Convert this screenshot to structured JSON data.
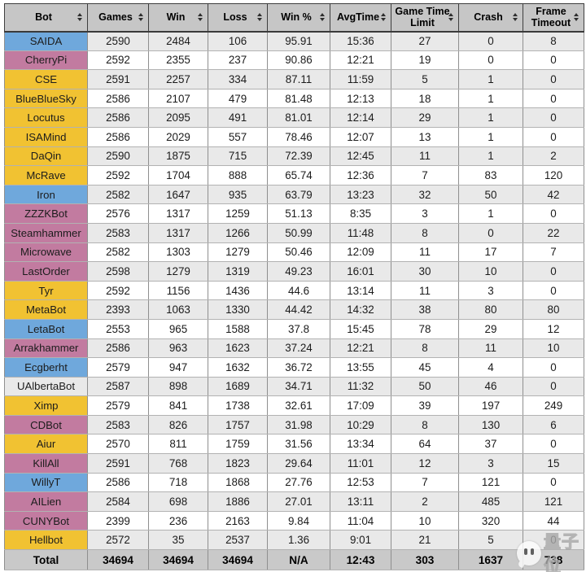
{
  "colors": {
    "blue": "#6fa8dc",
    "pink": "#c27ba0",
    "yellow": "#f1c232",
    "header_bg": "#c6c6c6",
    "stripe": "#e9e9e9",
    "total_bg": "#c9c9c9"
  },
  "table": {
    "columns": [
      {
        "key": "bot",
        "label": "Bot"
      },
      {
        "key": "games",
        "label": "Games"
      },
      {
        "key": "win",
        "label": "Win"
      },
      {
        "key": "loss",
        "label": "Loss"
      },
      {
        "key": "win_pct",
        "label": "Win %"
      },
      {
        "key": "avg_time",
        "label": "AvgTime"
      },
      {
        "key": "game_time_limit",
        "label": "Game Time Limit"
      },
      {
        "key": "crash",
        "label": "Crash"
      },
      {
        "key": "frame_timeout",
        "label": "Frame Timeout"
      }
    ],
    "rows": [
      {
        "bot": "SAIDA",
        "color": "blue",
        "cells": [
          "2590",
          "2484",
          "106",
          "95.91",
          "15:36",
          "27",
          "0",
          "8"
        ]
      },
      {
        "bot": "CherryPi",
        "color": "pink",
        "cells": [
          "2592",
          "2355",
          "237",
          "90.86",
          "12:21",
          "19",
          "0",
          "0"
        ]
      },
      {
        "bot": "CSE",
        "color": "yellow",
        "cells": [
          "2591",
          "2257",
          "334",
          "87.11",
          "11:59",
          "5",
          "1",
          "0"
        ]
      },
      {
        "bot": "BlueBlueSky",
        "color": "yellow",
        "cells": [
          "2586",
          "2107",
          "479",
          "81.48",
          "12:13",
          "18",
          "1",
          "0"
        ]
      },
      {
        "bot": "Locutus",
        "color": "yellow",
        "cells": [
          "2586",
          "2095",
          "491",
          "81.01",
          "12:14",
          "29",
          "1",
          "0"
        ]
      },
      {
        "bot": "ISAMind",
        "color": "yellow",
        "cells": [
          "2586",
          "2029",
          "557",
          "78.46",
          "12:07",
          "13",
          "1",
          "0"
        ]
      },
      {
        "bot": "DaQin",
        "color": "yellow",
        "cells": [
          "2590",
          "1875",
          "715",
          "72.39",
          "12:45",
          "11",
          "1",
          "2"
        ]
      },
      {
        "bot": "McRave",
        "color": "yellow",
        "cells": [
          "2592",
          "1704",
          "888",
          "65.74",
          "12:36",
          "7",
          "83",
          "120"
        ]
      },
      {
        "bot": "Iron",
        "color": "blue",
        "cells": [
          "2582",
          "1647",
          "935",
          "63.79",
          "13:23",
          "32",
          "50",
          "42"
        ]
      },
      {
        "bot": "ZZZKBot",
        "color": "pink",
        "cells": [
          "2576",
          "1317",
          "1259",
          "51.13",
          "8:35",
          "3",
          "1",
          "0"
        ]
      },
      {
        "bot": "Steamhammer",
        "color": "pink",
        "cells": [
          "2583",
          "1317",
          "1266",
          "50.99",
          "11:48",
          "8",
          "0",
          "22"
        ]
      },
      {
        "bot": "Microwave",
        "color": "pink",
        "cells": [
          "2582",
          "1303",
          "1279",
          "50.46",
          "12:09",
          "11",
          "17",
          "7"
        ]
      },
      {
        "bot": "LastOrder",
        "color": "pink",
        "cells": [
          "2598",
          "1279",
          "1319",
          "49.23",
          "16:01",
          "30",
          "10",
          "0"
        ]
      },
      {
        "bot": "Tyr",
        "color": "yellow",
        "cells": [
          "2592",
          "1156",
          "1436",
          "44.6",
          "13:14",
          "11",
          "3",
          "0"
        ]
      },
      {
        "bot": "MetaBot",
        "color": "yellow",
        "cells": [
          "2393",
          "1063",
          "1330",
          "44.42",
          "14:32",
          "38",
          "80",
          "80"
        ]
      },
      {
        "bot": "LetaBot",
        "color": "blue",
        "cells": [
          "2553",
          "965",
          "1588",
          "37.8",
          "15:45",
          "78",
          "29",
          "12"
        ]
      },
      {
        "bot": "Arrakhammer",
        "color": "pink",
        "cells": [
          "2586",
          "963",
          "1623",
          "37.24",
          "12:21",
          "8",
          "11",
          "10"
        ]
      },
      {
        "bot": "Ecgberht",
        "color": "blue",
        "cells": [
          "2579",
          "947",
          "1632",
          "36.72",
          "13:55",
          "45",
          "4",
          "0"
        ]
      },
      {
        "bot": "UAlbertaBot",
        "color": "none",
        "cells": [
          "2587",
          "898",
          "1689",
          "34.71",
          "11:32",
          "50",
          "46",
          "0"
        ]
      },
      {
        "bot": "Ximp",
        "color": "yellow",
        "cells": [
          "2579",
          "841",
          "1738",
          "32.61",
          "17:09",
          "39",
          "197",
          "249"
        ]
      },
      {
        "bot": "CDBot",
        "color": "pink",
        "cells": [
          "2583",
          "826",
          "1757",
          "31.98",
          "10:29",
          "8",
          "130",
          "6"
        ]
      },
      {
        "bot": "Aiur",
        "color": "yellow",
        "cells": [
          "2570",
          "811",
          "1759",
          "31.56",
          "13:34",
          "64",
          "37",
          "0"
        ]
      },
      {
        "bot": "KillAll",
        "color": "pink",
        "cells": [
          "2591",
          "768",
          "1823",
          "29.64",
          "11:01",
          "12",
          "3",
          "15"
        ]
      },
      {
        "bot": "WillyT",
        "color": "blue",
        "cells": [
          "2586",
          "718",
          "1868",
          "27.76",
          "12:53",
          "7",
          "121",
          "0"
        ]
      },
      {
        "bot": "AILien",
        "color": "pink",
        "cells": [
          "2584",
          "698",
          "1886",
          "27.01",
          "13:11",
          "2",
          "485",
          "121"
        ]
      },
      {
        "bot": "CUNYBot",
        "color": "pink",
        "cells": [
          "2399",
          "236",
          "2163",
          "9.84",
          "11:04",
          "10",
          "320",
          "44"
        ]
      },
      {
        "bot": "Hellbot",
        "color": "yellow",
        "cells": [
          "2572",
          "35",
          "2537",
          "1.36",
          "9:01",
          "21",
          "5",
          "0"
        ]
      }
    ],
    "total": {
      "label": "Total",
      "cells": [
        "34694",
        "34694",
        "34694",
        "N/A",
        "12:43",
        "303",
        "1637",
        "738"
      ]
    }
  },
  "watermark": {
    "text": "量子位"
  }
}
